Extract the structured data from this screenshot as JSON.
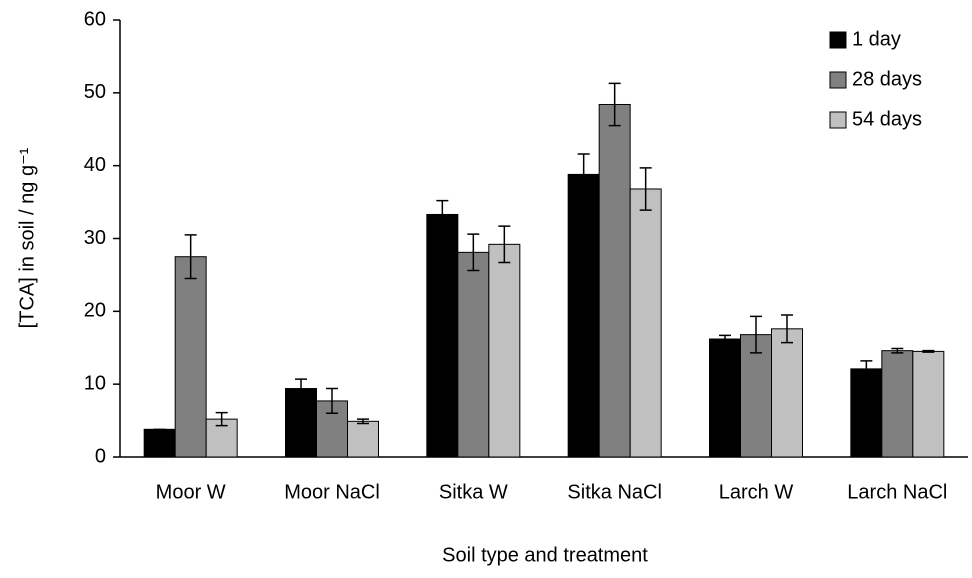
{
  "chart_data": {
    "type": "bar",
    "x_label": "Soil type and treatment",
    "y_label": "[TCA] in soil / ng g⁻¹",
    "categories": [
      "Moor W",
      "Moor NaCl",
      "Sitka W",
      "Sitka NaCl",
      "Larch W",
      "Larch NaCl"
    ],
    "series": [
      {
        "name": "1 day",
        "color": "#000000",
        "values": [
          3.8,
          9.4,
          33.3,
          38.8,
          16.2,
          12.1
        ],
        "errors": [
          0,
          1.3,
          1.9,
          2.8,
          0.5,
          1.1
        ]
      },
      {
        "name": "28 days",
        "color": "#808080",
        "values": [
          27.5,
          7.7,
          28.1,
          48.4,
          16.8,
          14.6
        ],
        "errors": [
          3,
          1.7,
          2.5,
          2.9,
          2.5,
          0.3
        ]
      },
      {
        "name": "54 days",
        "color": "#c0c0c0",
        "values": [
          5.2,
          4.9,
          29.2,
          36.8,
          17.6,
          14.5
        ],
        "errors": [
          0.9,
          0.3,
          2.5,
          2.9,
          1.9,
          0.1
        ]
      }
    ],
    "ylim": [
      0,
      60
    ],
    "yticks": [
      0,
      10,
      20,
      30,
      40,
      50,
      60
    ],
    "grid": false,
    "legend": "upper right"
  }
}
